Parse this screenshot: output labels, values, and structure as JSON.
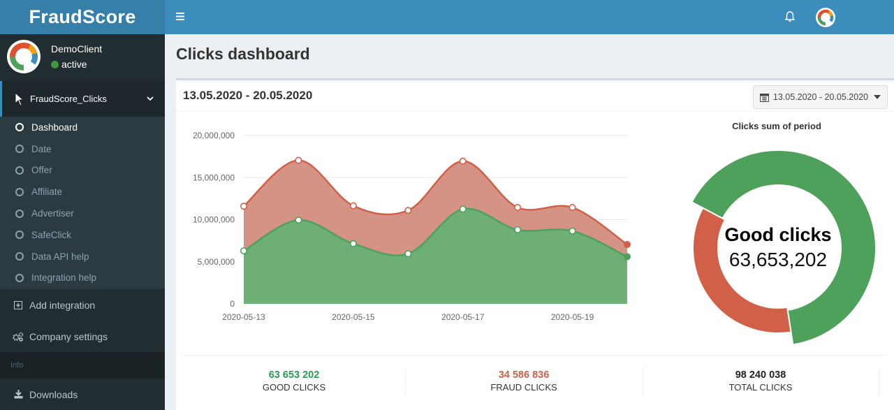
{
  "logo": {
    "text": "FraudScore"
  },
  "user": {
    "name": "DemoClient",
    "status": "active"
  },
  "menu": {
    "header": "FraudScore_Clicks",
    "submenu": [
      "Dashboard",
      "Date",
      "Offer",
      "Affiliate",
      "Advertiser",
      "SafeClick",
      "Data API help",
      "Integration help"
    ],
    "active_item": "Dashboard",
    "add_integration": "Add integration",
    "company_settings": "Company settings",
    "section_info": "Info",
    "downloads": "Downloads"
  },
  "page": {
    "title": "Clicks dashboard"
  },
  "box": {
    "range_title": "13.05.2020 - 20.05.2020",
    "range_button": "13.05.2020 - 20.05.2020"
  },
  "colors": {
    "good": "#4da15a",
    "fraud": "#d06048",
    "topbar": "#3c8dbc",
    "sidebar": "#222d32"
  },
  "chart_data": [
    {
      "type": "area",
      "x": [
        "2020-05-13",
        "2020-05-14",
        "2020-05-15",
        "2020-05-16",
        "2020-05-17",
        "2020-05-18",
        "2020-05-19",
        "2020-05-20"
      ],
      "x_tick_labels": [
        "2020-05-13",
        "2020-05-15",
        "2020-05-17",
        "2020-05-19"
      ],
      "y_tick_labels": [
        "0",
        "5,000,000",
        "10,000,000",
        "15,000,000",
        "20,000,000"
      ],
      "ylim": [
        0,
        20000000
      ],
      "series": [
        {
          "values": [
            6300000,
            9950000,
            7150000,
            5950000,
            11250000,
            8800000,
            8650000,
            5600000
          ],
          "color": "#4da15a"
        },
        {
          "values": [
            11600000,
            17050000,
            11650000,
            11100000,
            16950000,
            11450000,
            11450000,
            7050000
          ],
          "color": "#d06048"
        }
      ],
      "grid": true
    },
    {
      "type": "pie",
      "title": "Clicks sum of period",
      "labels": [
        "Good clicks",
        "Fraud clicks"
      ],
      "values": [
        63653202,
        34586836
      ],
      "center_label": "Good clicks",
      "center_value": "63,653,202"
    }
  ],
  "stats": [
    {
      "value": "63 653 202",
      "label": "GOOD CLICKS",
      "color": "#2a9a55"
    },
    {
      "value": "34 586 836",
      "label": "FRAUD CLICKS",
      "color": "#d06048"
    },
    {
      "value": "98 240 038",
      "label": "TOTAL CLICKS",
      "color": "#222222"
    }
  ]
}
